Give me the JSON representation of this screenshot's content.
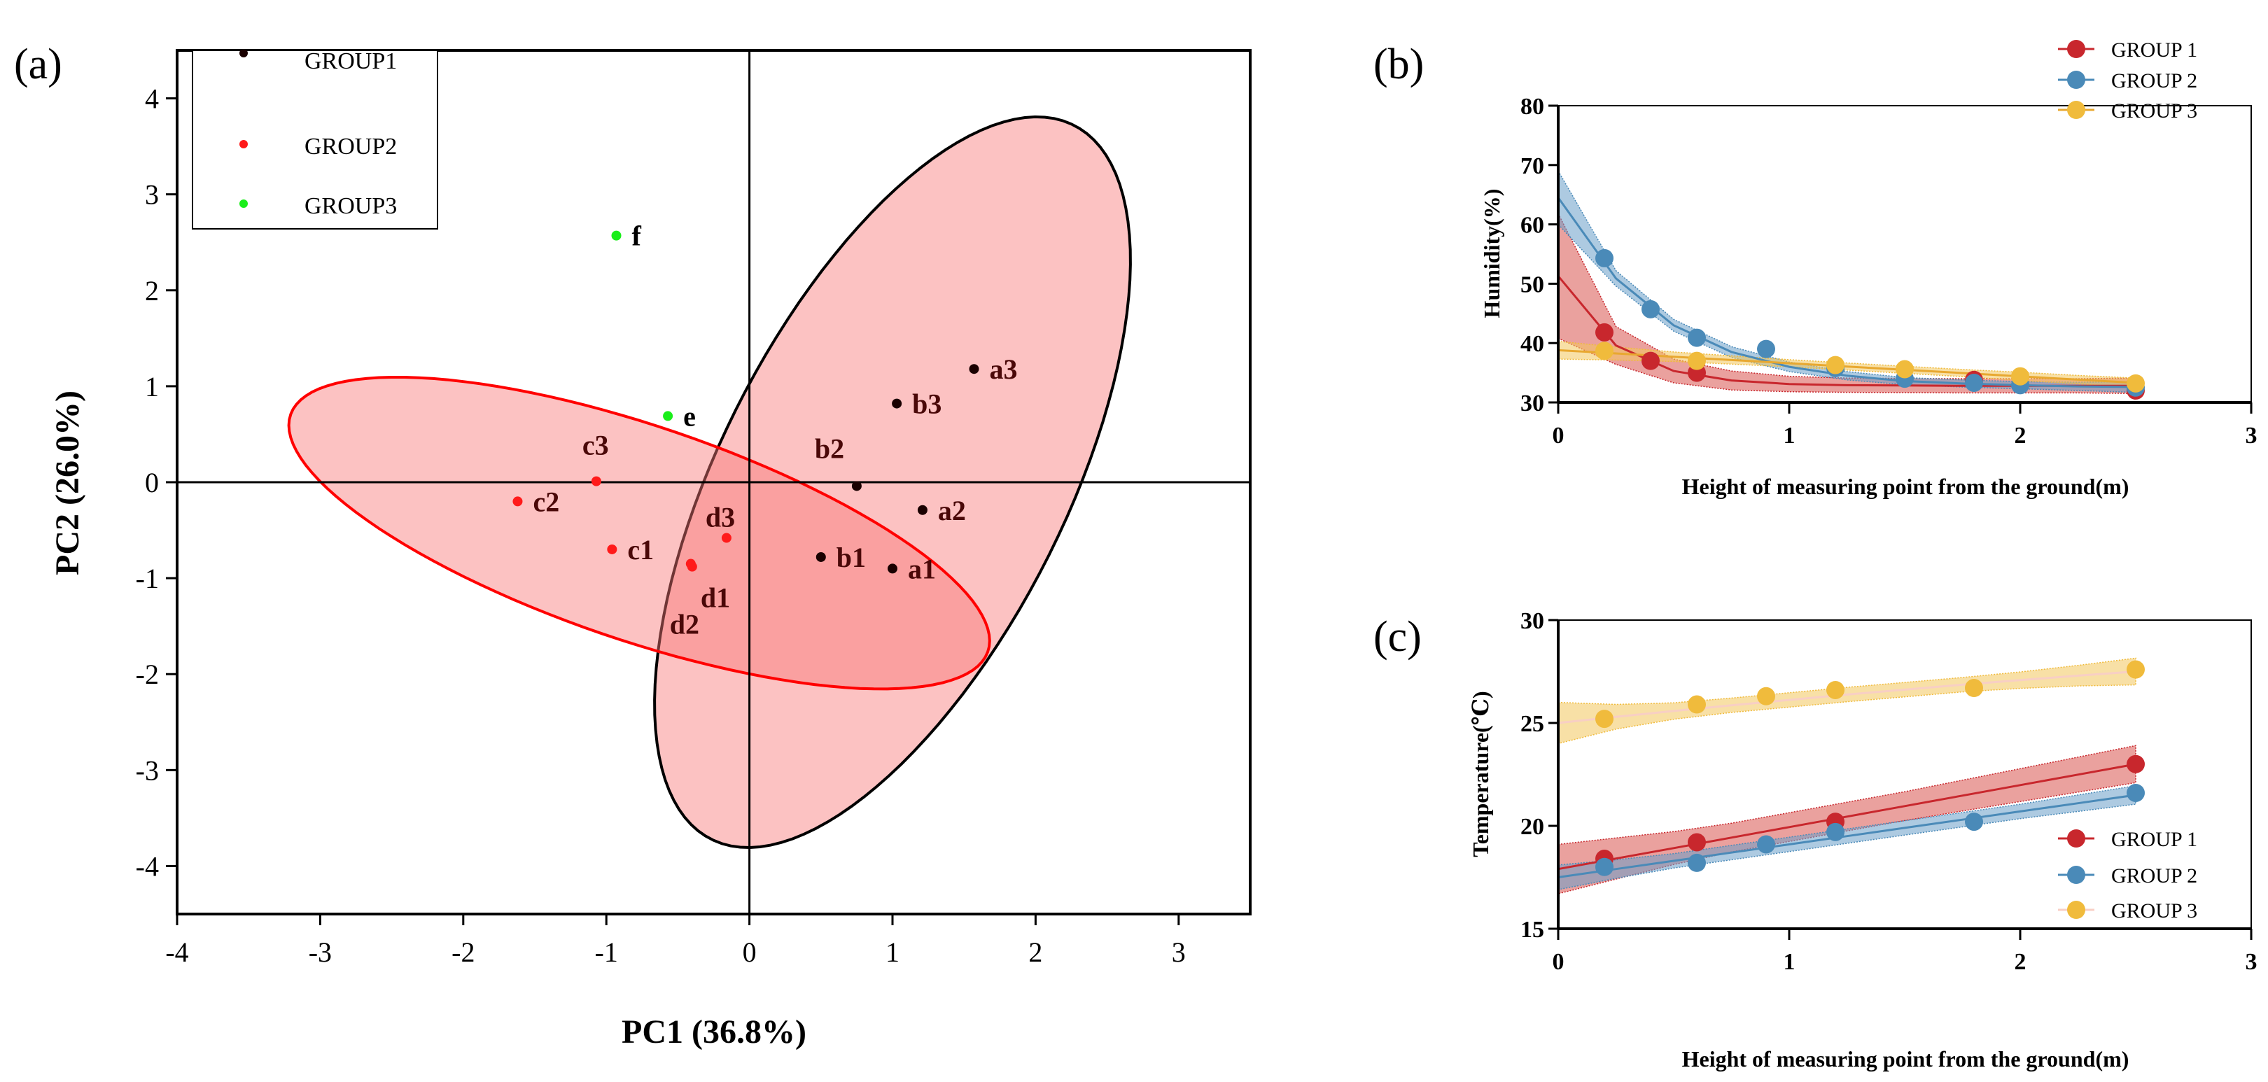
{
  "chart_data": [
    {
      "type": "scatter",
      "panel_label": "(a)",
      "xlabel": "PC1 (36.8%)",
      "ylabel": "PC2 (26.0%)",
      "xlim": [
        -4,
        3.5
      ],
      "ylim": [
        -4.5,
        4.5
      ],
      "xticks": [
        -4,
        -3,
        -2,
        -1,
        0,
        1,
        2,
        3
      ],
      "yticks": [
        -4,
        -3,
        -2,
        -1,
        0,
        1,
        2,
        3,
        4
      ],
      "legend_position": "top-left",
      "series": [
        {
          "name": "GROUP1",
          "color": "#1a0000",
          "label_color": "#4a0808",
          "points": [
            {
              "label": "a1",
              "x": 1.0,
              "y": -0.9
            },
            {
              "label": "a2",
              "x": 1.21,
              "y": -0.29
            },
            {
              "label": "a3",
              "x": 1.57,
              "y": 1.18
            },
            {
              "label": "b1",
              "x": 0.5,
              "y": -0.78
            },
            {
              "label": "b2",
              "x": 0.75,
              "y": -0.04
            },
            {
              "label": "b3",
              "x": 1.03,
              "y": 0.82
            }
          ],
          "ellipse": {
            "center": [
              1.0,
              0.0
            ],
            "u": [
              1.13,
              3.79
            ],
            "v": [
              1.22,
              -0.36
            ],
            "stroke": "#000000"
          }
        },
        {
          "name": "GROUP2",
          "color": "#ff1a1a",
          "label_color": "#4a0808",
          "points": [
            {
              "label": "c1",
              "x": -0.96,
              "y": -0.7
            },
            {
              "label": "c2",
              "x": -1.62,
              "y": -0.2
            },
            {
              "label": "c3",
              "x": -1.07,
              "y": 0.01
            },
            {
              "label": "d1",
              "x": -0.4,
              "y": -0.88
            },
            {
              "label": "d2",
              "x": -0.41,
              "y": -0.85
            },
            {
              "label": "d3",
              "x": -0.16,
              "y": -0.58
            }
          ],
          "ellipse": {
            "center": [
              -0.77,
              -0.53
            ],
            "u": [
              2.449,
              -1.123
            ],
            "v": [
              0.0,
              1.174
            ],
            "stroke": "#ff0000"
          }
        },
        {
          "name": "GROUP3",
          "color": "#1aee1a",
          "label_color": "#000000",
          "points": [
            {
              "label": "e",
              "x": -0.57,
              "y": 0.69
            },
            {
              "label": "f",
              "x": -0.93,
              "y": 2.57
            }
          ]
        }
      ]
    },
    {
      "type": "scatter",
      "panel_label": "(b)",
      "xlabel": "Height of measuring point from the ground(m)",
      "ylabel": "Humidity(%)",
      "xlim": [
        0,
        3
      ],
      "ylim": [
        30,
        80
      ],
      "xticks": [
        0,
        1,
        2,
        3
      ],
      "yticks": [
        30,
        40,
        50,
        60,
        70,
        80
      ],
      "legend_position": "top-right",
      "fit_x": [
        0,
        0.25,
        0.5,
        0.75,
        1,
        1.25,
        1.5,
        1.75,
        2,
        2.25,
        2.5
      ],
      "series": [
        {
          "name": "GROUP 1",
          "color": "#c8272d",
          "band_color": "#d9534f",
          "line_color": "#c8272d",
          "x": [
            0.2,
            0.4,
            0.6,
            1.8,
            2.5
          ],
          "y": [
            41.8,
            37.0,
            35.0,
            33.8,
            32.0
          ],
          "fit": [
            51.3,
            39.6,
            35.3,
            33.7,
            33.1,
            32.9,
            32.85,
            32.8,
            32.8,
            32.8,
            32.8
          ],
          "band": [
            10.5,
            3.2,
            2.0,
            1.6,
            1.3,
            1.2,
            1.2,
            1.2,
            1.2,
            1.2,
            1.3
          ]
        },
        {
          "name": "GROUP 2",
          "color": "#4a8ab8",
          "band_color": "#6a9fc8",
          "line_color": "#4a8ab8",
          "x": [
            0.2,
            0.4,
            0.6,
            0.9,
            1.2,
            1.5,
            1.8,
            2.0,
            2.5
          ],
          "y": [
            54.3,
            45.7,
            40.9,
            39.0,
            35.8,
            34.0,
            33.3,
            32.9,
            32.5
          ],
          "fit": [
            64.5,
            50.9,
            43.0,
            38.5,
            36.0,
            34.5,
            33.6,
            33.2,
            32.9,
            32.7,
            32.6
          ],
          "band": [
            4.5,
            1.3,
            1.0,
            0.9,
            0.8,
            0.7,
            0.6,
            0.6,
            0.6,
            0.7,
            0.9
          ]
        },
        {
          "name": "GROUP 3",
          "color": "#f0bb3c",
          "band_color": "#f2c75c",
          "line_color": "#e8a830",
          "x": [
            0.2,
            0.6,
            1.2,
            1.5,
            2.0,
            2.5
          ],
          "y": [
            38.7,
            37.0,
            36.3,
            35.6,
            34.4,
            33.2
          ],
          "fit": [
            38.8,
            38.25,
            37.7,
            37.15,
            36.6,
            36.05,
            35.5,
            34.95,
            34.4,
            33.85,
            33.3
          ],
          "band": [
            1.5,
            1.1,
            0.8,
            0.7,
            0.6,
            0.6,
            0.6,
            0.6,
            0.7,
            0.7,
            0.8
          ]
        }
      ]
    },
    {
      "type": "scatter",
      "panel_label": "(c)",
      "xlabel": "Height of measuring point from the ground(m)",
      "ylabel": "Temperature(℃)",
      "xlim": [
        0,
        3
      ],
      "ylim": [
        15,
        30
      ],
      "xticks": [
        0,
        1,
        2,
        3
      ],
      "yticks": [
        15,
        20,
        25,
        30
      ],
      "legend_position": "bottom-right",
      "fit_x": [
        0,
        0.25,
        0.5,
        0.75,
        1,
        1.25,
        1.5,
        1.75,
        2,
        2.25,
        2.5
      ],
      "series": [
        {
          "name": "GROUP 1",
          "color": "#c8272d",
          "band_color": "#d9534f",
          "line_color": "#c8272d",
          "x": [
            0.2,
            0.6,
            1.2,
            2.5
          ],
          "y": [
            18.4,
            19.2,
            20.2,
            23.0
          ],
          "fit": [
            17.9,
            18.41,
            18.92,
            19.43,
            19.94,
            20.45,
            20.96,
            21.47,
            21.98,
            22.49,
            23.0
          ],
          "band": [
            1.2,
            1.0,
            0.8,
            0.7,
            0.7,
            0.7,
            0.7,
            0.75,
            0.8,
            0.85,
            0.9
          ]
        },
        {
          "name": "GROUP 2",
          "color": "#4a8ab8",
          "band_color": "#6a9fc8",
          "line_color": "#4a8ab8",
          "x": [
            0.2,
            0.6,
            0.9,
            1.2,
            1.8,
            2.5
          ],
          "y": [
            18.0,
            18.2,
            19.1,
            19.7,
            20.2,
            21.6
          ],
          "fit": [
            17.5,
            17.9,
            18.3,
            18.7,
            19.1,
            19.5,
            19.9,
            20.3,
            20.7,
            21.1,
            21.5
          ],
          "band": [
            0.6,
            0.45,
            0.35,
            0.35,
            0.35,
            0.35,
            0.35,
            0.35,
            0.35,
            0.4,
            0.45
          ]
        },
        {
          "name": "GROUP 3",
          "color": "#f0bb3c",
          "band_color": "#f2c75c",
          "line_color": "#f8cfc4",
          "x": [
            0.2,
            0.6,
            0.9,
            1.2,
            1.8,
            2.5
          ],
          "y": [
            25.2,
            25.9,
            26.3,
            26.6,
            26.7,
            27.6
          ],
          "fit": [
            25.0,
            25.3,
            25.58,
            25.86,
            26.12,
            26.38,
            26.62,
            26.86,
            27.08,
            27.3,
            27.5
          ],
          "band": [
            1.0,
            0.6,
            0.4,
            0.35,
            0.35,
            0.35,
            0.35,
            0.35,
            0.4,
            0.5,
            0.65
          ]
        }
      ]
    }
  ]
}
